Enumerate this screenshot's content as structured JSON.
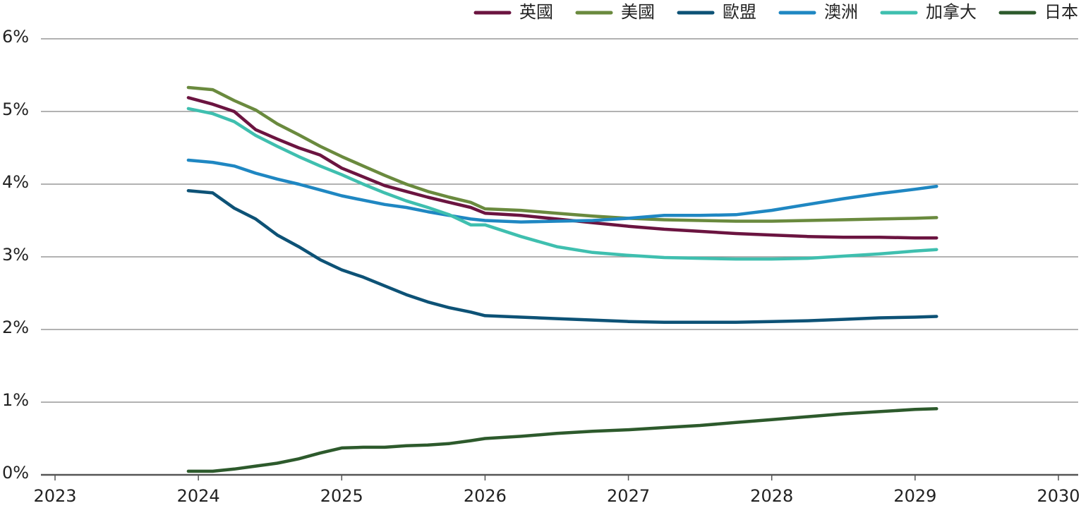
{
  "chart_data": {
    "type": "line",
    "x": [
      2023.93,
      2024.1,
      2024.25,
      2024.4,
      2024.55,
      2024.7,
      2024.85,
      2025.0,
      2025.15,
      2025.3,
      2025.45,
      2025.6,
      2025.75,
      2025.9,
      2026.0,
      2026.25,
      2026.5,
      2026.75,
      2027.0,
      2027.25,
      2027.5,
      2027.75,
      2028.0,
      2028.25,
      2028.5,
      2028.75,
      2029.0,
      2029.15
    ],
    "series": [
      {
        "name": "英國",
        "color": "#6b1440",
        "values": [
          5.19,
          5.1,
          5.0,
          4.75,
          4.62,
          4.5,
          4.4,
          4.22,
          4.1,
          3.98,
          3.9,
          3.82,
          3.75,
          3.68,
          3.6,
          3.57,
          3.52,
          3.47,
          3.42,
          3.38,
          3.35,
          3.32,
          3.3,
          3.28,
          3.27,
          3.27,
          3.26,
          3.26
        ]
      },
      {
        "name": "美國",
        "color": "#6a8a3e",
        "values": [
          5.33,
          5.3,
          5.15,
          5.02,
          4.83,
          4.68,
          4.52,
          4.38,
          4.25,
          4.12,
          4.0,
          3.9,
          3.82,
          3.75,
          3.66,
          3.64,
          3.6,
          3.56,
          3.53,
          3.51,
          3.5,
          3.49,
          3.49,
          3.5,
          3.51,
          3.52,
          3.53,
          3.54
        ]
      },
      {
        "name": "歐盟",
        "color": "#0d5276",
        "values": [
          3.91,
          3.88,
          3.67,
          3.52,
          3.3,
          3.14,
          2.96,
          2.82,
          2.72,
          2.6,
          2.48,
          2.38,
          2.3,
          2.24,
          2.19,
          2.17,
          2.15,
          2.13,
          2.11,
          2.1,
          2.1,
          2.1,
          2.11,
          2.12,
          2.14,
          2.16,
          2.17,
          2.18
        ]
      },
      {
        "name": "澳洲",
        "color": "#1f87c2",
        "values": [
          4.33,
          4.3,
          4.25,
          4.15,
          4.07,
          4.0,
          3.92,
          3.84,
          3.78,
          3.72,
          3.68,
          3.62,
          3.57,
          3.52,
          3.5,
          3.48,
          3.49,
          3.5,
          3.53,
          3.57,
          3.57,
          3.58,
          3.64,
          3.72,
          3.8,
          3.87,
          3.93,
          3.97
        ]
      },
      {
        "name": "加拿大",
        "color": "#3fbfaf",
        "values": [
          5.04,
          4.97,
          4.86,
          4.67,
          4.52,
          4.38,
          4.25,
          4.13,
          4.0,
          3.88,
          3.77,
          3.68,
          3.58,
          3.44,
          3.44,
          3.28,
          3.14,
          3.06,
          3.02,
          2.99,
          2.98,
          2.97,
          2.97,
          2.98,
          3.01,
          3.04,
          3.08,
          3.1
        ]
      },
      {
        "name": "日本",
        "color": "#2d5a2c",
        "values": [
          0.05,
          0.05,
          0.08,
          0.12,
          0.16,
          0.22,
          0.3,
          0.37,
          0.38,
          0.38,
          0.4,
          0.41,
          0.43,
          0.47,
          0.5,
          0.53,
          0.57,
          0.6,
          0.62,
          0.65,
          0.68,
          0.72,
          0.76,
          0.8,
          0.84,
          0.87,
          0.9,
          0.91
        ]
      }
    ],
    "xlim": [
      2023,
      2030
    ],
    "xticks": [
      2023,
      2024,
      2025,
      2026,
      2027,
      2028,
      2029,
      2030
    ],
    "ylim": [
      0,
      6
    ],
    "yticks": [
      {
        "value": 0,
        "label": "0%"
      },
      {
        "value": 1,
        "label": "1%"
      },
      {
        "value": 2,
        "label": "2%"
      },
      {
        "value": 3,
        "label": "3%"
      },
      {
        "value": 4,
        "label": "4%"
      },
      {
        "value": 5,
        "label": "5%"
      },
      {
        "value": 6,
        "label": "6%"
      }
    ],
    "grid": true,
    "legend": "top-right"
  }
}
